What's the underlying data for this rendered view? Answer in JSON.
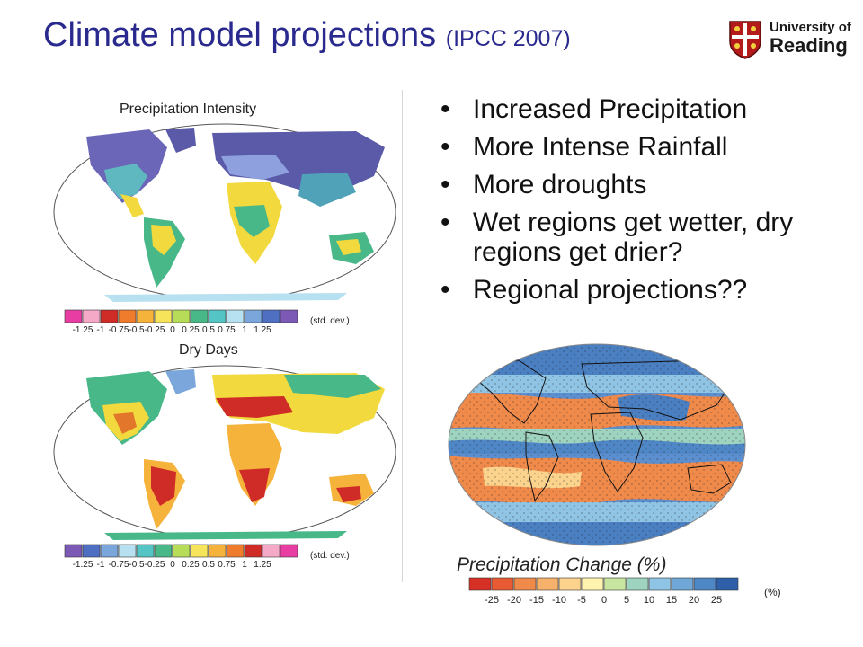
{
  "title": {
    "main": "Climate model projections",
    "sub": "(IPCC 2007)"
  },
  "logo": {
    "line1": "University of",
    "line2": "Reading"
  },
  "maps": {
    "intensity": {
      "label": "Precipitation Intensity",
      "colors": [
        "#e83ea3",
        "#f4a9c6",
        "#cf2c28",
        "#ef7b2c",
        "#f6b33c",
        "#f6e45b",
        "#b7dc57",
        "#49b889",
        "#54c4c4",
        "#b7e0f0",
        "#7aa6dc",
        "#4f6fc2",
        "#7b59b5"
      ],
      "ticks": [
        "-1.25",
        "-1",
        "-0.75",
        "-0.5",
        "-0.25",
        "0",
        "0.25",
        "0.5",
        "0.75",
        "1",
        "1.25"
      ],
      "unit": "(std. dev.)"
    },
    "drydays": {
      "label": "Dry Days",
      "colors": [
        "#7b59b5",
        "#4f6fc2",
        "#7aa6dc",
        "#b7e0f0",
        "#54c4c4",
        "#49b889",
        "#b7dc57",
        "#f6e45b",
        "#f6b33c",
        "#ef7b2c",
        "#cf2c28",
        "#f4a9c6",
        "#e83ea3"
      ],
      "ticks": [
        "-1.25",
        "-1",
        "-0.75",
        "-0.5",
        "-0.25",
        "0",
        "0.25",
        "0.5",
        "0.75",
        "1",
        "1.25"
      ],
      "unit": "(std. dev.)"
    },
    "change": {
      "label": "Precipitation Change (%)",
      "colors": [
        "#d73027",
        "#e85a33",
        "#f08a4b",
        "#f6b26b",
        "#fbd38d",
        "#fff3b0",
        "#c8e6a0",
        "#9ed3c0",
        "#8fc4e4",
        "#6ea7d8",
        "#4f86c6",
        "#2e5fa8"
      ],
      "ticks": [
        "-25",
        "-20",
        "-15",
        "-10",
        "-5",
        "0",
        "5",
        "10",
        "15",
        "20",
        "25"
      ],
      "unit": "(%)"
    }
  },
  "bullets": [
    "Increased Precipitation",
    "More Intense Rainfall",
    "More droughts",
    "Wet regions get wetter, dry regions get drier?",
    "Regional projections??"
  ]
}
